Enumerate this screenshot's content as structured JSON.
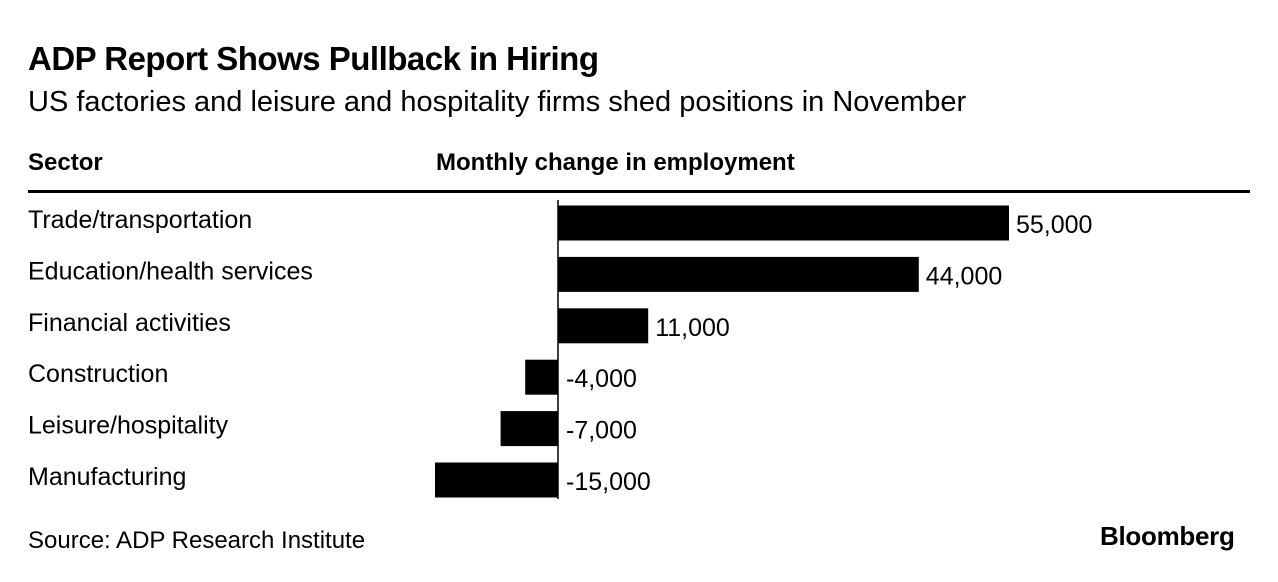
{
  "chart_data": {
    "type": "bar",
    "orientation": "horizontal",
    "title": "ADP Report Shows Pullback in Hiring",
    "subtitle": "US factories and leisure and hospitality firms shed positions in November",
    "category_header": "Sector",
    "value_header": "Monthly change in employment",
    "categories": [
      "Trade/transportation",
      "Education/health services",
      "Financial activities",
      "Construction",
      "Leisure/hospitality",
      "Manufacturing"
    ],
    "values": [
      55000,
      44000,
      11000,
      -4000,
      -7000,
      -15000
    ],
    "value_labels": [
      "55,000",
      "44,000",
      "11,000",
      "-4,000",
      "-7,000",
      "-15,000"
    ],
    "bar_color": "#000000",
    "grid": false,
    "legend": "none",
    "source": "Source: ADP Research Institute",
    "brand": "Bloomberg"
  }
}
